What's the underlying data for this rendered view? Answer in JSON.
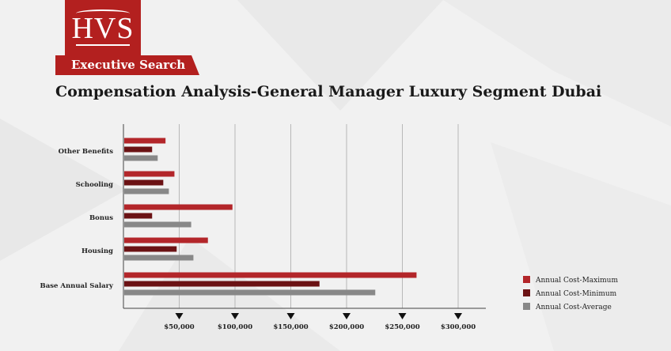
{
  "brand": {
    "logo_text": "HVS",
    "tagline": "Executive Search",
    "primary_color": "#b3201f"
  },
  "page": {
    "title": "Compensation Analysis-General Manager Luxury Segment Dubai"
  },
  "chart_data": {
    "type": "bar",
    "orientation": "horizontal",
    "title": "",
    "xlabel": "",
    "ylabel": "",
    "xlim": [
      0,
      320000
    ],
    "x_ticks": [
      50000,
      100000,
      150000,
      200000,
      250000,
      300000
    ],
    "x_tick_labels": [
      "$50,000",
      "$100,000",
      "$150,000",
      "$200,000",
      "$250,000",
      "$300,000"
    ],
    "grid": true,
    "legend_position": "bottom-right",
    "categories": [
      "Other Benefits",
      "Schooling",
      "Bonus",
      "Housing",
      "Base Annual Salary"
    ],
    "series": [
      {
        "name": "Annual Cost-Maximum",
        "color": "#b3262a",
        "values": [
          37000,
          45000,
          97000,
          75000,
          262000
        ]
      },
      {
        "name": "Annual Cost-Minimum",
        "color": "#6b1214",
        "values": [
          25000,
          35000,
          25000,
          47000,
          175000
        ]
      },
      {
        "name": "Annual Cost-Average",
        "color": "#888888",
        "values": [
          30000,
          40000,
          60000,
          62000,
          225000
        ]
      }
    ]
  }
}
